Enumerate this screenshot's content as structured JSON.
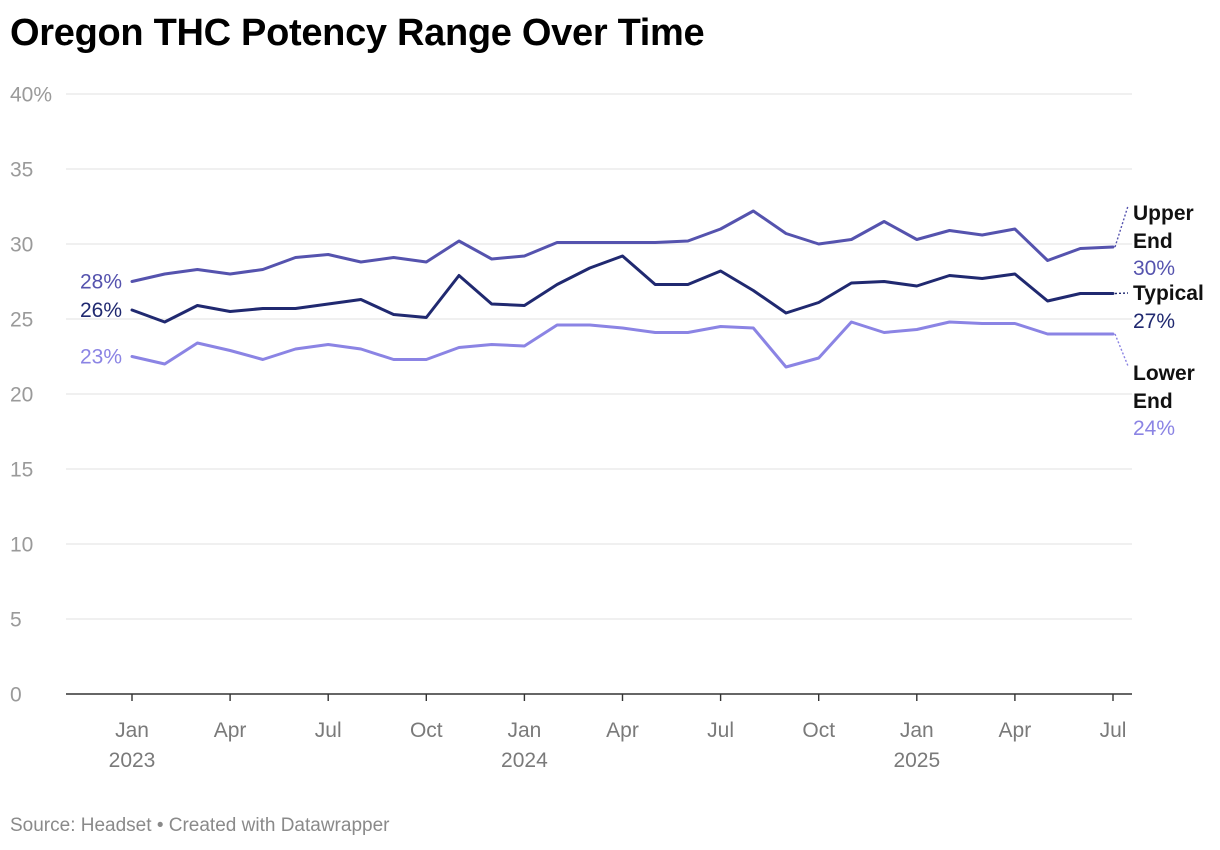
{
  "title": "Oregon THC Potency Range Over Time",
  "footer": {
    "source_label": "Source: Headset",
    "separator": "•",
    "credit": "Created with Datawrapper"
  },
  "chart_data": {
    "type": "line",
    "title": "Oregon THC Potency Range Over Time",
    "xlabel": "",
    "ylabel": "",
    "ylim": [
      0,
      40
    ],
    "y_ticks": [
      0,
      5,
      10,
      15,
      20,
      25,
      30,
      35,
      40
    ],
    "y_tick_labels": [
      "0",
      "5",
      "10",
      "15",
      "20",
      "25",
      "30",
      "35",
      "40%"
    ],
    "x": [
      "2023-01",
      "2023-02",
      "2023-03",
      "2023-04",
      "2023-05",
      "2023-06",
      "2023-07",
      "2023-08",
      "2023-09",
      "2023-10",
      "2023-11",
      "2023-12",
      "2024-01",
      "2024-02",
      "2024-03",
      "2024-04",
      "2024-05",
      "2024-06",
      "2024-07",
      "2024-08",
      "2024-09",
      "2024-10",
      "2024-11",
      "2024-12",
      "2025-01",
      "2025-02",
      "2025-03",
      "2025-04",
      "2025-05",
      "2025-06",
      "2025-07"
    ],
    "x_ticks": [
      {
        "month": "2023-01",
        "label": "Jan",
        "year": "2023"
      },
      {
        "month": "2023-04",
        "label": "Apr",
        "year": ""
      },
      {
        "month": "2023-07",
        "label": "Jul",
        "year": ""
      },
      {
        "month": "2023-10",
        "label": "Oct",
        "year": ""
      },
      {
        "month": "2024-01",
        "label": "Jan",
        "year": "2024"
      },
      {
        "month": "2024-04",
        "label": "Apr",
        "year": ""
      },
      {
        "month": "2024-07",
        "label": "Jul",
        "year": ""
      },
      {
        "month": "2024-10",
        "label": "Oct",
        "year": ""
      },
      {
        "month": "2025-01",
        "label": "Jan",
        "year": "2025"
      },
      {
        "month": "2025-04",
        "label": "Apr",
        "year": ""
      },
      {
        "month": "2025-07",
        "label": "Jul",
        "year": ""
      }
    ],
    "grid": true,
    "series": [
      {
        "name": "Upper End",
        "name_lines": [
          "Upper",
          "End"
        ],
        "color": "#5553ae",
        "start_label": "28%",
        "end_label": "30%",
        "values": [
          27.5,
          28.0,
          28.3,
          28.0,
          28.3,
          29.1,
          29.3,
          28.8,
          29.1,
          28.8,
          30.2,
          29.0,
          29.2,
          30.1,
          30.1,
          30.1,
          30.1,
          30.2,
          31.0,
          32.2,
          30.7,
          30.0,
          30.3,
          31.5,
          30.3,
          30.9,
          30.6,
          31.0,
          28.9,
          29.7,
          29.8
        ]
      },
      {
        "name": "Typical",
        "name_lines": [
          "Typical"
        ],
        "color": "#202970",
        "start_label": "26%",
        "end_label": "27%",
        "values": [
          25.6,
          24.8,
          25.9,
          25.5,
          25.7,
          25.7,
          26.0,
          26.3,
          25.3,
          25.1,
          27.9,
          26.0,
          25.9,
          27.3,
          28.4,
          29.2,
          27.3,
          27.3,
          28.2,
          26.9,
          25.4,
          26.1,
          27.4,
          27.5,
          27.2,
          27.9,
          27.7,
          28.0,
          26.2,
          26.7,
          26.7
        ]
      },
      {
        "name": "Lower End",
        "name_lines": [
          "Lower",
          "End"
        ],
        "color": "#8b84e4",
        "start_label": "23%",
        "end_label": "24%",
        "values": [
          22.5,
          22.0,
          23.4,
          22.9,
          22.3,
          23.0,
          23.3,
          23.0,
          22.3,
          22.3,
          23.1,
          23.3,
          23.2,
          24.6,
          24.6,
          24.4,
          24.1,
          24.1,
          24.5,
          24.4,
          21.8,
          22.4,
          24.8,
          24.1,
          24.3,
          24.8,
          24.7,
          24.7,
          24.0,
          24.0,
          24.0
        ]
      }
    ]
  }
}
